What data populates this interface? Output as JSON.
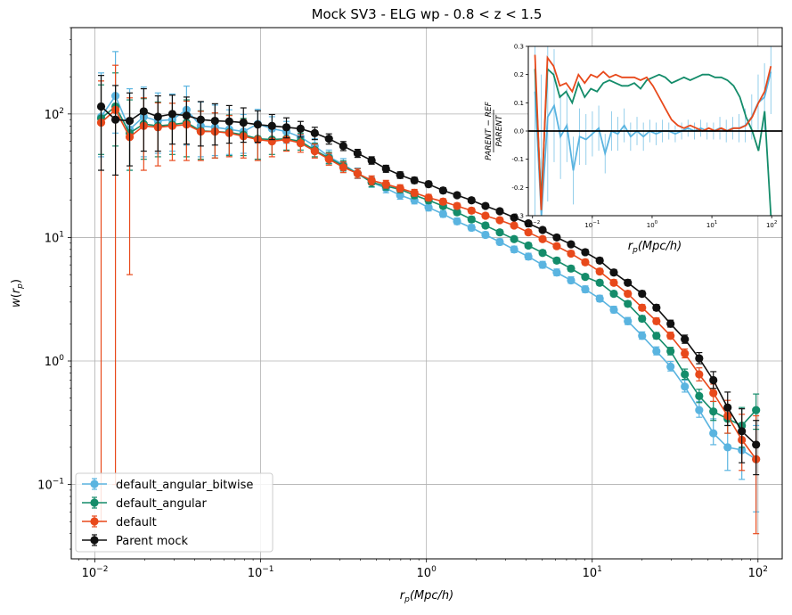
{
  "chart_data": [
    {
      "type": "line",
      "title": "Mock SV3 - ELG wp - 0.8 < z < 1.5",
      "xlabel": "r_p(Mpc/h)",
      "ylabel": "w(r_p)",
      "xscale": "log",
      "yscale": "log",
      "xlim": [
        0.0072,
        140
      ],
      "ylim": [
        0.025,
        500
      ],
      "xticks": [
        {
          "value": 0.01,
          "base": "10",
          "exp": "−2"
        },
        {
          "value": 0.1,
          "base": "10",
          "exp": "−1"
        },
        {
          "value": 1,
          "base": "10",
          "exp": "0"
        },
        {
          "value": 10,
          "base": "10",
          "exp": "1"
        },
        {
          "value": 100,
          "base": "10",
          "exp": "2"
        }
      ],
      "yticks": [
        {
          "value": 0.1,
          "base": "10",
          "exp": "−1"
        },
        {
          "value": 1,
          "base": "10",
          "exp": "0"
        },
        {
          "value": 10,
          "base": "10",
          "exp": "1"
        },
        {
          "value": 100,
          "base": "10",
          "exp": "2"
        }
      ],
      "grid": true,
      "legend_position": "lower-left",
      "x": [
        0.0109,
        0.0133,
        0.0162,
        0.0197,
        0.024,
        0.0293,
        0.0357,
        0.0435,
        0.053,
        0.0646,
        0.0787,
        0.096,
        0.117,
        0.143,
        0.174,
        0.212,
        0.258,
        0.315,
        0.384,
        0.467,
        0.57,
        0.694,
        0.846,
        1.03,
        1.26,
        1.53,
        1.87,
        2.27,
        2.77,
        3.38,
        4.12,
        5.02,
        6.11,
        7.45,
        9.08,
        11.1,
        13.5,
        16.4,
        20.0,
        24.4,
        29.7,
        36.2,
        44.2,
        53.8,
        65.6,
        79.9,
        97.4
      ],
      "series": [
        {
          "name": "default_angular_bitwise",
          "color": "#5ab4e0",
          "values": [
            95,
            140,
            75,
            95,
            88,
            90,
            108,
            80,
            78,
            75,
            72,
            83,
            76,
            72,
            65,
            55,
            45,
            39,
            33,
            28,
            25,
            22,
            20,
            17.5,
            15.5,
            13.5,
            12,
            10.5,
            9.2,
            8,
            7,
            6,
            5.2,
            4.5,
            3.8,
            3.2,
            2.6,
            2.1,
            1.6,
            1.2,
            0.9,
            0.62,
            0.4,
            0.26,
            0.2,
            0.19,
            0.16
          ],
          "err_lo": [
            50,
            70,
            40,
            50,
            40,
            40,
            52,
            35,
            32,
            28,
            24,
            25,
            18,
            14,
            10,
            7,
            5,
            4,
            3,
            2.5,
            2,
            1.6,
            1.3,
            1.1,
            0.9,
            0.75,
            0.65,
            0.55,
            0.5,
            0.45,
            0.4,
            0.35,
            0.3,
            0.25,
            0.22,
            0.18,
            0.15,
            0.13,
            0.1,
            0.08,
            0.07,
            0.06,
            0.05,
            0.05,
            0.07,
            0.08,
            0.1
          ],
          "err_hi": [
            120,
            180,
            85,
            70,
            60,
            55,
            60,
            45,
            40,
            33,
            27,
            26,
            19,
            15,
            11,
            8,
            6,
            4.5,
            3.5,
            2.8,
            2.2,
            1.8,
            1.5,
            1.2,
            1.0,
            0.85,
            0.7,
            0.6,
            0.55,
            0.5,
            0.45,
            0.4,
            0.35,
            0.3,
            0.25,
            0.2,
            0.17,
            0.15,
            0.12,
            0.1,
            0.09,
            0.08,
            0.07,
            0.08,
            0.1,
            0.12,
            0.14
          ]
        },
        {
          "name": "default_angular",
          "color": "#148c6a",
          "values": [
            92,
            115,
            70,
            83,
            80,
            82,
            85,
            73,
            72,
            71,
            68,
            63,
            62,
            63,
            60,
            51,
            44,
            38,
            33,
            28,
            26,
            24.5,
            22,
            20,
            18,
            16,
            14,
            12.5,
            11,
            9.7,
            8.6,
            7.5,
            6.5,
            5.6,
            4.8,
            4.3,
            3.5,
            2.9,
            2.2,
            1.6,
            1.2,
            0.78,
            0.52,
            0.39,
            0.34,
            0.3,
            0.4
          ],
          "err_lo": [
            45,
            60,
            35,
            40,
            35,
            35,
            40,
            30,
            28,
            25,
            22,
            20,
            15,
            12,
            9,
            6,
            4.5,
            3.5,
            2.8,
            2.3,
            1.8,
            1.5,
            1.3,
            1.1,
            0.9,
            0.8,
            0.7,
            0.6,
            0.5,
            0.45,
            0.4,
            0.35,
            0.3,
            0.27,
            0.23,
            0.2,
            0.17,
            0.14,
            0.11,
            0.09,
            0.08,
            0.07,
            0.06,
            0.06,
            0.08,
            0.1,
            0.12
          ],
          "err_hi": [
            80,
            100,
            60,
            50,
            45,
            40,
            45,
            33,
            30,
            27,
            24,
            21,
            16,
            13,
            10,
            7,
            5,
            3.8,
            3,
            2.4,
            1.9,
            1.6,
            1.4,
            1.2,
            1.0,
            0.85,
            0.75,
            0.65,
            0.55,
            0.5,
            0.45,
            0.4,
            0.35,
            0.3,
            0.25,
            0.22,
            0.19,
            0.16,
            0.13,
            0.1,
            0.09,
            0.08,
            0.07,
            0.08,
            0.1,
            0.12,
            0.14
          ]
        },
        {
          "name": "default",
          "color": "#e8491b",
          "values": [
            85,
            108,
            65,
            80,
            78,
            80,
            82,
            72,
            72,
            70,
            66,
            62,
            60,
            62,
            58,
            50,
            43,
            37,
            33,
            29,
            27,
            25,
            23,
            21,
            19.5,
            18,
            16.5,
            15,
            13.8,
            12.5,
            11,
            9.7,
            8.5,
            7.4,
            6.3,
            5.3,
            4.3,
            3.5,
            2.7,
            2.1,
            1.6,
            1.15,
            0.78,
            0.55,
            0.36,
            0.23,
            0.16
          ],
          "err_lo": [
            84.95,
            107.9,
            60,
            45,
            40,
            38,
            40,
            30,
            28,
            25,
            22,
            20,
            15,
            12,
            9,
            6,
            4.5,
            3.5,
            2.8,
            2.3,
            1.9,
            1.6,
            1.4,
            1.2,
            1.0,
            0.9,
            0.8,
            0.7,
            0.6,
            0.55,
            0.5,
            0.45,
            0.4,
            0.35,
            0.3,
            0.25,
            0.2,
            0.17,
            0.14,
            0.11,
            0.09,
            0.09,
            0.09,
            0.08,
            0.1,
            0.1,
            0.12
          ],
          "err_hi": [
            100,
            140,
            70,
            55,
            45,
            42,
            45,
            33,
            30,
            27,
            24,
            21,
            16,
            13,
            10,
            7,
            5,
            3.8,
            3,
            2.5,
            2.0,
            1.7,
            1.5,
            1.3,
            1.1,
            0.95,
            0.85,
            0.75,
            0.65,
            0.6,
            0.55,
            0.5,
            0.45,
            0.4,
            0.35,
            0.3,
            0.25,
            0.2,
            0.16,
            0.13,
            0.11,
            0.1,
            0.1,
            0.1,
            0.12,
            0.14,
            0.2
          ]
        },
        {
          "name": "Parent mock",
          "color": "#111111",
          "values": [
            115,
            90,
            88,
            105,
            95,
            100,
            97,
            90,
            88,
            87,
            85,
            82,
            80,
            78,
            76,
            70,
            63,
            55,
            48,
            42,
            36,
            32,
            29,
            27,
            24,
            22,
            20,
            18,
            16.3,
            14.5,
            13,
            11.5,
            10,
            8.8,
            7.6,
            6.5,
            5.2,
            4.3,
            3.5,
            2.7,
            2.0,
            1.5,
            1.05,
            0.7,
            0.42,
            0.27,
            0.21
          ],
          "err_lo": [
            80,
            58,
            50,
            55,
            45,
            43,
            40,
            35,
            32,
            29,
            26,
            23,
            18,
            14,
            11,
            8,
            6,
            4.5,
            3.5,
            2.8,
            2.3,
            1.9,
            1.6,
            1.4,
            1.2,
            1.0,
            0.9,
            0.8,
            0.7,
            0.6,
            0.55,
            0.5,
            0.45,
            0.4,
            0.35,
            0.3,
            0.25,
            0.2,
            0.17,
            0.14,
            0.12,
            0.11,
            0.1,
            0.1,
            0.12,
            0.12,
            0.09
          ],
          "err_hi": [
            90,
            80,
            60,
            55,
            45,
            42,
            40,
            36,
            33,
            30,
            27,
            24,
            19,
            15,
            11,
            8,
            6,
            4.8,
            3.7,
            3.0,
            2.4,
            2.0,
            1.7,
            1.5,
            1.3,
            1.1,
            0.95,
            0.85,
            0.75,
            0.65,
            0.6,
            0.55,
            0.5,
            0.45,
            0.4,
            0.35,
            0.3,
            0.25,
            0.2,
            0.16,
            0.14,
            0.12,
            0.12,
            0.12,
            0.14,
            0.14,
            0.12
          ]
        }
      ]
    },
    {
      "type": "line",
      "title": "",
      "xlabel": "r_p(Mpc/h)",
      "ylabel_numerator": "PARENT − REF",
      "ylabel_denominator": "PARENT",
      "xscale": "log",
      "xlim": [
        0.0085,
        150
      ],
      "ylim": [
        -0.3,
        0.3
      ],
      "xticks": [
        {
          "value": 0.01,
          "base": "10",
          "exp": "−2"
        },
        {
          "value": 0.1,
          "base": "10",
          "exp": "−1"
        },
        {
          "value": 1,
          "base": "10",
          "exp": "0"
        },
        {
          "value": 10,
          "base": "10",
          "exp": "1"
        },
        {
          "value": 100,
          "base": "10",
          "exp": "2"
        }
      ],
      "yticks": [
        "-0.3",
        "-0.2",
        "-0.1",
        "0.0",
        "0.1",
        "0.2",
        "0.3"
      ],
      "yticks_values": [
        -0.3,
        -0.2,
        -0.1,
        0.0,
        0.1,
        0.2,
        0.3
      ],
      "zero_line": true,
      "series": [
        {
          "name": "default_angular_bitwise",
          "color": "#5ab4e0",
          "values": [
            0.14,
            -0.3,
            0.05,
            0.09,
            -0.02,
            0.02,
            -0.14,
            -0.02,
            -0.03,
            -0.01,
            0.01,
            -0.08,
            0.0,
            -0.01,
            0.02,
            -0.02,
            0.0,
            -0.02,
            0.0,
            -0.01,
            0.0,
            0.0,
            -0.01,
            0.0,
            0.01,
            0.0,
            0.01,
            0.0,
            0.0,
            0.01,
            0.0,
            0.01,
            0.01,
            0.02,
            0.05,
            0.1,
            0.12,
            0.21
          ],
          "err": [
            0.5,
            0.5,
            0.3,
            0.2,
            0.15,
            0.13,
            0.12,
            0.1,
            0.09,
            0.08,
            0.08,
            0.07,
            0.07,
            0.06,
            0.06,
            0.05,
            0.05,
            0.05,
            0.04,
            0.04,
            0.04,
            0.03,
            0.03,
            0.03,
            0.03,
            0.03,
            0.03,
            0.03,
            0.03,
            0.04,
            0.04,
            0.04,
            0.05,
            0.06,
            0.08,
            0.1,
            0.12,
            0.15
          ]
        },
        {
          "name": "default_angular",
          "color": "#148c6a",
          "values": [
            0.22,
            -0.25,
            0.22,
            0.2,
            0.12,
            0.14,
            0.1,
            0.17,
            0.12,
            0.15,
            0.14,
            0.17,
            0.18,
            0.17,
            0.16,
            0.16,
            0.17,
            0.15,
            0.18,
            0.19,
            0.2,
            0.19,
            0.17,
            0.18,
            0.19,
            0.18,
            0.19,
            0.2,
            0.2,
            0.19,
            0.19,
            0.18,
            0.16,
            0.12,
            0.05,
            0.0,
            -0.07,
            0.07,
            -0.3
          ]
        },
        {
          "name": "default",
          "color": "#e8491b",
          "values": [
            0.27,
            -0.28,
            0.26,
            0.23,
            0.16,
            0.17,
            0.14,
            0.2,
            0.17,
            0.2,
            0.19,
            0.21,
            0.19,
            0.2,
            0.19,
            0.19,
            0.19,
            0.18,
            0.19,
            0.16,
            0.12,
            0.08,
            0.04,
            0.02,
            0.01,
            0.02,
            0.01,
            0.0,
            0.01,
            0.0,
            0.01,
            0.0,
            0.01,
            0.01,
            0.02,
            0.05,
            0.1,
            0.14,
            0.23
          ]
        }
      ]
    }
  ]
}
